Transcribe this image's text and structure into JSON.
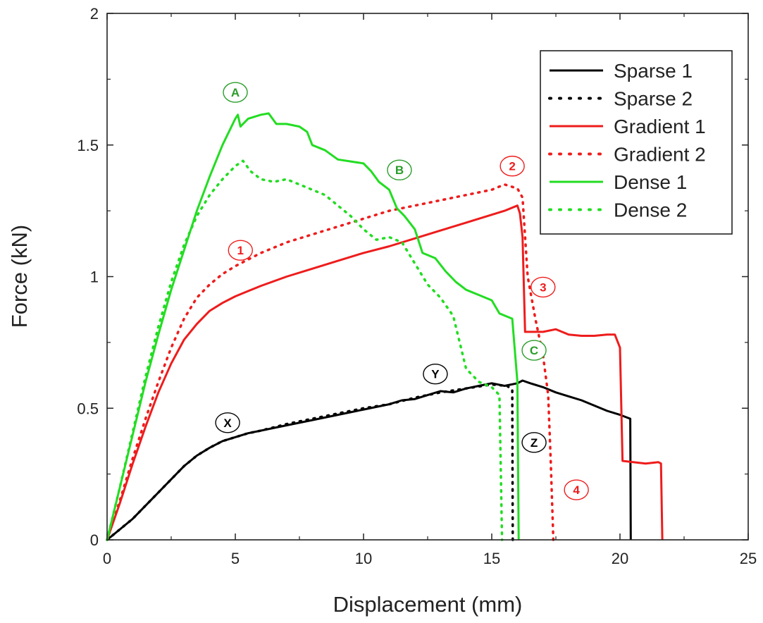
{
  "chart_data": {
    "type": "line",
    "title": "",
    "xlabel": "Displacement (mm)",
    "ylabel": "Force (kN)",
    "xlim": [
      0,
      25
    ],
    "ylim": [
      0,
      2
    ],
    "xticks": [
      0,
      5,
      10,
      15,
      20,
      25
    ],
    "xtick_labels": [
      "0",
      "5",
      "10",
      "15",
      "20",
      "25"
    ],
    "yticks": [
      0,
      0.5,
      1,
      1.5,
      2
    ],
    "ytick_labels": [
      "0",
      "0.5",
      "1",
      "1.5",
      "2"
    ],
    "grid": false,
    "legend_position": "top-right",
    "series": [
      {
        "name": "Sparse 1",
        "color": "#000000",
        "style": "solid",
        "points": [
          [
            0,
            0
          ],
          [
            0.5,
            0.04
          ],
          [
            1,
            0.08
          ],
          [
            1.5,
            0.13
          ],
          [
            2,
            0.18
          ],
          [
            2.5,
            0.23
          ],
          [
            3,
            0.28
          ],
          [
            3.5,
            0.32
          ],
          [
            4,
            0.35
          ],
          [
            4.5,
            0.375
          ],
          [
            5,
            0.39
          ],
          [
            5.5,
            0.405
          ],
          [
            6,
            0.415
          ],
          [
            7,
            0.435
          ],
          [
            8,
            0.455
          ],
          [
            9,
            0.475
          ],
          [
            10,
            0.495
          ],
          [
            11,
            0.515
          ],
          [
            11.5,
            0.53
          ],
          [
            12,
            0.535
          ],
          [
            12.5,
            0.55
          ],
          [
            13,
            0.565
          ],
          [
            13.5,
            0.56
          ],
          [
            14,
            0.575
          ],
          [
            14.5,
            0.585
          ],
          [
            15,
            0.595
          ],
          [
            15.5,
            0.585
          ],
          [
            16,
            0.595
          ],
          [
            16.2,
            0.605
          ],
          [
            16.5,
            0.595
          ],
          [
            17,
            0.58
          ],
          [
            17.5,
            0.56
          ],
          [
            18,
            0.545
          ],
          [
            18.5,
            0.53
          ],
          [
            19,
            0.51
          ],
          [
            19.5,
            0.49
          ],
          [
            20,
            0.475
          ],
          [
            20.4,
            0.46
          ],
          [
            20.42,
            0
          ]
        ]
      },
      {
        "name": "Sparse 2",
        "color": "#000000",
        "style": "dotted",
        "points": [
          [
            0,
            0
          ],
          [
            0.5,
            0.04
          ],
          [
            1,
            0.08
          ],
          [
            1.5,
            0.13
          ],
          [
            2,
            0.18
          ],
          [
            2.5,
            0.23
          ],
          [
            3,
            0.28
          ],
          [
            3.5,
            0.32
          ],
          [
            4,
            0.35
          ],
          [
            4.5,
            0.375
          ],
          [
            5,
            0.39
          ],
          [
            5.5,
            0.405
          ],
          [
            6,
            0.415
          ],
          [
            7,
            0.44
          ],
          [
            8,
            0.46
          ],
          [
            9,
            0.48
          ],
          [
            10,
            0.5
          ],
          [
            11,
            0.515
          ],
          [
            12,
            0.54
          ],
          [
            13,
            0.56
          ],
          [
            14,
            0.575
          ],
          [
            15,
            0.59
          ],
          [
            15.6,
            0.585
          ],
          [
            15.8,
            0.57
          ],
          [
            15.82,
            0
          ]
        ]
      },
      {
        "name": "Gradient 1",
        "color": "#ee1c1c",
        "style": "solid",
        "points": [
          [
            0,
            0
          ],
          [
            0.5,
            0.14
          ],
          [
            1,
            0.29
          ],
          [
            1.5,
            0.43
          ],
          [
            2,
            0.56
          ],
          [
            2.5,
            0.67
          ],
          [
            3,
            0.76
          ],
          [
            3.5,
            0.82
          ],
          [
            4,
            0.87
          ],
          [
            4.5,
            0.9
          ],
          [
            5,
            0.925
          ],
          [
            5.5,
            0.945
          ],
          [
            6,
            0.965
          ],
          [
            7,
            1.0
          ],
          [
            8,
            1.03
          ],
          [
            9,
            1.06
          ],
          [
            10,
            1.09
          ],
          [
            11,
            1.115
          ],
          [
            12,
            1.145
          ],
          [
            13,
            1.175
          ],
          [
            14,
            1.205
          ],
          [
            15,
            1.235
          ],
          [
            15.5,
            1.25
          ],
          [
            16,
            1.27
          ],
          [
            16.1,
            1.24
          ],
          [
            16.2,
            1.15
          ],
          [
            16.3,
            0.79
          ],
          [
            17,
            0.79
          ],
          [
            17.5,
            0.8
          ],
          [
            18,
            0.78
          ],
          [
            18.5,
            0.775
          ],
          [
            19,
            0.775
          ],
          [
            19.5,
            0.78
          ],
          [
            19.8,
            0.78
          ],
          [
            20,
            0.73
          ],
          [
            20.1,
            0.3
          ],
          [
            21,
            0.29
          ],
          [
            21.5,
            0.295
          ],
          [
            21.6,
            0.29
          ],
          [
            21.65,
            0
          ]
        ]
      },
      {
        "name": "Gradient 2",
        "color": "#ee1c1c",
        "style": "dotted",
        "points": [
          [
            0,
            0
          ],
          [
            0.5,
            0.15
          ],
          [
            1,
            0.31
          ],
          [
            1.5,
            0.46
          ],
          [
            2,
            0.6
          ],
          [
            2.5,
            0.73
          ],
          [
            3,
            0.84
          ],
          [
            3.5,
            0.92
          ],
          [
            4,
            0.97
          ],
          [
            4.5,
            1.01
          ],
          [
            5,
            1.04
          ],
          [
            5.5,
            1.065
          ],
          [
            6,
            1.09
          ],
          [
            7,
            1.13
          ],
          [
            8,
            1.16
          ],
          [
            9,
            1.19
          ],
          [
            10,
            1.22
          ],
          [
            11,
            1.25
          ],
          [
            12,
            1.27
          ],
          [
            13,
            1.29
          ],
          [
            14,
            1.31
          ],
          [
            15,
            1.33
          ],
          [
            15.5,
            1.35
          ],
          [
            16,
            1.335
          ],
          [
            16.2,
            1.3
          ],
          [
            16.4,
            1.0
          ],
          [
            16.7,
            0.84
          ],
          [
            17,
            0.7
          ],
          [
            17.2,
            0.55
          ],
          [
            17.3,
            0.3
          ],
          [
            17.4,
            0
          ]
        ]
      },
      {
        "name": "Dense 1",
        "color": "#22dd22",
        "style": "solid",
        "points": [
          [
            0,
            0
          ],
          [
            0.5,
            0.2
          ],
          [
            1,
            0.4
          ],
          [
            1.5,
            0.6
          ],
          [
            2,
            0.78
          ],
          [
            2.5,
            0.95
          ],
          [
            3,
            1.1
          ],
          [
            3.5,
            1.25
          ],
          [
            4,
            1.38
          ],
          [
            4.5,
            1.5
          ],
          [
            5,
            1.6
          ],
          [
            5.1,
            1.615
          ],
          [
            5.2,
            1.57
          ],
          [
            5.5,
            1.6
          ],
          [
            6,
            1.615
          ],
          [
            6.3,
            1.62
          ],
          [
            6.6,
            1.58
          ],
          [
            7,
            1.58
          ],
          [
            7.5,
            1.57
          ],
          [
            7.8,
            1.55
          ],
          [
            8,
            1.5
          ],
          [
            8.5,
            1.48
          ],
          [
            9,
            1.445
          ],
          [
            10,
            1.43
          ],
          [
            10.3,
            1.4
          ],
          [
            10.6,
            1.36
          ],
          [
            11,
            1.33
          ],
          [
            11.3,
            1.26
          ],
          [
            11.6,
            1.23
          ],
          [
            12,
            1.18
          ],
          [
            12.3,
            1.09
          ],
          [
            12.8,
            1.07
          ],
          [
            13.2,
            1.02
          ],
          [
            13.6,
            0.98
          ],
          [
            14,
            0.95
          ],
          [
            14.5,
            0.93
          ],
          [
            15,
            0.91
          ],
          [
            15.3,
            0.86
          ],
          [
            15.8,
            0.84
          ],
          [
            16,
            0.6
          ],
          [
            16.05,
            0
          ]
        ]
      },
      {
        "name": "Dense 2",
        "color": "#22dd22",
        "style": "dotted",
        "points": [
          [
            0,
            0
          ],
          [
            0.5,
            0.2
          ],
          [
            1,
            0.41
          ],
          [
            1.5,
            0.62
          ],
          [
            2,
            0.81
          ],
          [
            2.5,
            0.98
          ],
          [
            3,
            1.12
          ],
          [
            3.5,
            1.23
          ],
          [
            4,
            1.31
          ],
          [
            4.5,
            1.37
          ],
          [
            5,
            1.42
          ],
          [
            5.3,
            1.44
          ],
          [
            5.6,
            1.4
          ],
          [
            6,
            1.37
          ],
          [
            6.5,
            1.36
          ],
          [
            7,
            1.37
          ],
          [
            7.5,
            1.35
          ],
          [
            8,
            1.33
          ],
          [
            8.5,
            1.31
          ],
          [
            9,
            1.27
          ],
          [
            9.5,
            1.23
          ],
          [
            10,
            1.18
          ],
          [
            10.5,
            1.14
          ],
          [
            11,
            1.15
          ],
          [
            11.5,
            1.13
          ],
          [
            12,
            1.05
          ],
          [
            12.5,
            0.97
          ],
          [
            13,
            0.92
          ],
          [
            13.5,
            0.85
          ],
          [
            14,
            0.65
          ],
          [
            14.5,
            0.6
          ],
          [
            15,
            0.58
          ],
          [
            15.3,
            0.55
          ],
          [
            15.4,
            0
          ]
        ]
      }
    ],
    "annotations": [
      {
        "label": "A",
        "x": 5.0,
        "y": 1.7,
        "color": "#2a9d2a"
      },
      {
        "label": "B",
        "x": 11.4,
        "y": 1.405,
        "color": "#2a9d2a"
      },
      {
        "label": "C",
        "x": 16.65,
        "y": 0.72,
        "color": "#2a9d2a"
      },
      {
        "label": "1",
        "x": 5.2,
        "y": 1.1,
        "color": "#ee1c1c"
      },
      {
        "label": "2",
        "x": 15.8,
        "y": 1.42,
        "color": "#ee1c1c"
      },
      {
        "label": "3",
        "x": 17.0,
        "y": 0.96,
        "color": "#ee1c1c"
      },
      {
        "label": "4",
        "x": 18.3,
        "y": 0.19,
        "color": "#ee1c1c"
      },
      {
        "label": "X",
        "x": 4.7,
        "y": 0.445,
        "color": "#000000"
      },
      {
        "label": "Y",
        "x": 12.8,
        "y": 0.63,
        "color": "#000000"
      },
      {
        "label": "Z",
        "x": 16.65,
        "y": 0.37,
        "color": "#000000"
      }
    ]
  }
}
